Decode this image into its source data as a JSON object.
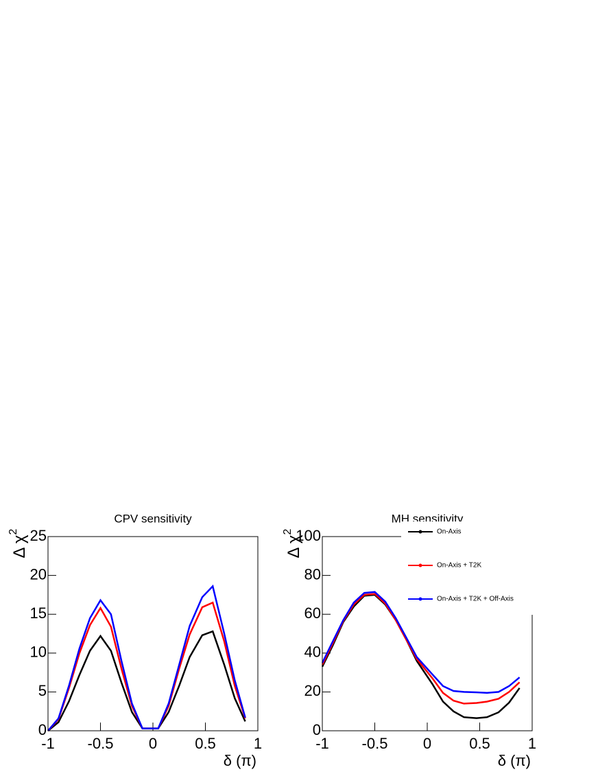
{
  "chart_data": [
    {
      "type": "line",
      "title": "CPV sensitivity",
      "xlabel": "δ (π)",
      "ylabel": "Δ χ",
      "ylabel_sup": "2",
      "x": [
        -1,
        -0.9,
        -0.8,
        -0.7,
        -0.6,
        -0.5,
        -0.4,
        -0.3,
        -0.2,
        -0.1,
        0.05,
        0.15,
        0.25,
        0.35,
        0.47,
        0.57,
        0.68,
        0.78,
        0.88
      ],
      "series": [
        {
          "name": "On-Axis",
          "color": "#000000",
          "values": [
            0,
            1.1,
            3.8,
            7.2,
            10.3,
            12.2,
            10.3,
            6.2,
            2.4,
            0.3,
            0.3,
            2.4,
            5.8,
            9.5,
            12.3,
            12.8,
            8.5,
            4.2,
            1.2
          ]
        },
        {
          "name": "On-Axis + T2K",
          "color": "#ff0000",
          "values": [
            0,
            1.5,
            5.5,
            10,
            13.6,
            15.8,
            13.4,
            8,
            3.2,
            0.3,
            0.3,
            3.2,
            8,
            12.4,
            15.9,
            16.5,
            11.5,
            5.8,
            1.6
          ]
        },
        {
          "name": "On-Axis + T2K + Off-Axis",
          "color": "#0000ff",
          "values": [
            0,
            1.6,
            5.8,
            10.6,
            14.5,
            16.8,
            15,
            9,
            3.5,
            0.3,
            0.3,
            3.5,
            8.5,
            13.5,
            17.2,
            18.6,
            12.5,
            6.5,
            1.7
          ]
        }
      ],
      "xlim": [
        -1,
        1
      ],
      "xticks": [
        -1,
        -0.5,
        0,
        0.5,
        1
      ],
      "ylim": [
        0,
        25
      ],
      "yticks": [
        0,
        5,
        10,
        15,
        20,
        25
      ]
    },
    {
      "type": "line",
      "title": "MH sensitivity",
      "xlabel": "δ (π)",
      "ylabel": "Δ χ",
      "ylabel_sup": "2",
      "x": [
        -1,
        -0.9,
        -0.8,
        -0.7,
        -0.6,
        -0.5,
        -0.4,
        -0.3,
        -0.2,
        -0.1,
        0.05,
        0.15,
        0.25,
        0.35,
        0.47,
        0.57,
        0.68,
        0.78,
        0.88
      ],
      "series": [
        {
          "name": "On-Axis",
          "color": "#000000",
          "values": [
            33,
            44,
            56,
            64,
            69.5,
            70,
            65,
            57,
            47,
            36,
            24,
            15,
            10,
            7,
            6.5,
            7,
            9.5,
            14.5,
            22
          ]
        },
        {
          "name": "On-Axis + T2K",
          "color": "#ff0000",
          "values": [
            34,
            45,
            56.5,
            65,
            70,
            70.5,
            65.5,
            57,
            47,
            37,
            27,
            19.5,
            15.5,
            14,
            14.3,
            15,
            16.5,
            20,
            25
          ]
        },
        {
          "name": "On-Axis + T2K + Off-Axis",
          "color": "#0000ff",
          "values": [
            35,
            46,
            57,
            66,
            71,
            71.5,
            66.5,
            58,
            48,
            38,
            29,
            23,
            20.5,
            20,
            19.8,
            19.5,
            20,
            23,
            27.5
          ]
        }
      ],
      "xlim": [
        -1,
        1
      ],
      "xticks": [
        -1,
        -0.5,
        0,
        0.5,
        1
      ],
      "ylim": [
        0,
        100
      ],
      "yticks": [
        0,
        20,
        40,
        60,
        80,
        100
      ],
      "legend": "top-right"
    }
  ]
}
